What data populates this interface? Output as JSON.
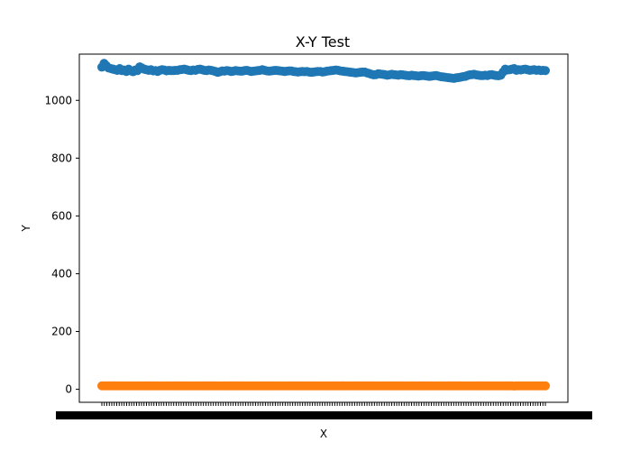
{
  "chart_data": {
    "type": "scatter",
    "title": "X-Y Test",
    "xlabel": "X",
    "ylabel": "Y",
    "y_ticks": [
      0,
      200,
      400,
      600,
      800,
      1000
    ],
    "ylim": [
      -45,
      1160
    ],
    "x_tick_count": 180,
    "x_tick_labels_note": "dense overlapping labels",
    "grid": false,
    "series": [
      {
        "color": "#1f77b4",
        "values": [
          1115,
          1128,
          1120,
          1112,
          1110,
          1108,
          1106,
          1104,
          1110,
          1103,
          1105,
          1100,
          1108,
          1102,
          1099,
          1105,
          1103,
          1116,
          1112,
          1108,
          1106,
          1104,
          1106,
          1102,
          1103,
          1100,
          1104,
          1106,
          1105,
          1102,
          1104,
          1103,
          1103,
          1104,
          1104,
          1106,
          1107,
          1108,
          1106,
          1104,
          1103,
          1105,
          1104,
          1107,
          1108,
          1106,
          1104,
          1103,
          1105,
          1104,
          1102,
          1100,
          1097,
          1099,
          1102,
          1101,
          1103,
          1102,
          1100,
          1101,
          1103,
          1102,
          1101,
          1101,
          1103,
          1104,
          1102,
          1100,
          1101,
          1102,
          1103,
          1104,
          1106,
          1104,
          1102,
          1101,
          1102,
          1103,
          1104,
          1103,
          1102,
          1101,
          1100,
          1101,
          1102,
          1102,
          1100,
          1099,
          1098,
          1099,
          1100,
          1099,
          1100,
          1098,
          1097,
          1098,
          1099,
          1100,
          1100,
          1098,
          1099,
          1101,
          1102,
          1103,
          1104,
          1105,
          1104,
          1102,
          1101,
          1100,
          1099,
          1098,
          1097,
          1096,
          1095,
          1096,
          1097,
          1098,
          1098,
          1095,
          1093,
          1090,
          1088,
          1089,
          1092,
          1091,
          1090,
          1089,
          1087,
          1088,
          1090,
          1089,
          1088,
          1087,
          1089,
          1088,
          1087,
          1086,
          1085,
          1087,
          1086,
          1085,
          1084,
          1085,
          1086,
          1085,
          1084,
          1083,
          1084,
          1085,
          1086,
          1084,
          1082,
          1081,
          1080,
          1079,
          1078,
          1077,
          1076,
          1078,
          1079,
          1080,
          1082,
          1083,
          1086,
          1088,
          1089,
          1090,
          1088,
          1087,
          1086,
          1086,
          1087,
          1086,
          1088,
          1089,
          1087,
          1086,
          1085,
          1087,
          1098,
          1108,
          1105,
          1106,
          1108,
          1110,
          1104,
          1106,
          1105,
          1107,
          1108,
          1106,
          1104,
          1105,
          1106,
          1104,
          1105,
          1103,
          1104,
          1103
        ]
      },
      {
        "color": "#ff7f0e",
        "values": [
          12,
          12,
          12,
          12,
          12,
          12,
          12,
          12,
          12,
          12,
          12,
          12,
          12,
          12,
          12,
          12,
          12,
          12,
          12,
          12,
          12,
          12,
          12,
          12,
          12,
          12,
          12,
          12,
          12,
          12,
          12,
          12,
          12,
          12,
          12,
          12,
          12,
          12,
          12,
          12,
          12,
          12,
          12,
          12,
          12,
          12,
          12,
          12,
          12,
          12,
          12,
          12,
          12,
          12,
          12,
          12,
          12,
          12,
          12,
          12,
          12,
          12,
          12,
          12,
          12,
          12,
          12,
          12,
          12,
          12,
          12,
          12,
          12,
          12,
          12,
          12,
          12,
          12,
          12,
          12,
          12,
          12,
          12,
          12,
          12,
          12,
          12,
          12,
          12,
          12,
          12,
          12,
          12,
          12,
          12,
          12,
          12,
          12,
          12,
          12,
          12,
          12,
          12,
          12,
          12,
          12,
          12,
          12,
          12,
          12,
          12,
          12,
          12,
          12,
          12,
          12,
          12,
          12,
          12,
          12,
          12,
          12,
          12,
          12,
          12,
          12,
          12,
          12,
          12,
          12,
          12,
          12,
          12,
          12,
          12,
          12,
          12,
          12,
          12,
          12,
          12,
          12,
          12,
          12,
          12,
          12,
          12,
          12,
          12,
          12,
          12,
          12,
          12,
          12,
          12,
          12,
          12,
          12,
          12,
          12,
          12,
          12,
          12,
          12,
          12,
          12,
          12,
          12,
          12,
          12,
          12,
          12,
          12,
          12,
          12,
          12,
          12,
          12,
          12,
          12,
          12,
          12,
          12,
          12,
          12,
          11,
          12,
          12,
          12,
          12,
          12,
          12,
          12,
          12,
          12,
          12,
          12,
          12,
          12,
          12
        ]
      }
    ]
  }
}
